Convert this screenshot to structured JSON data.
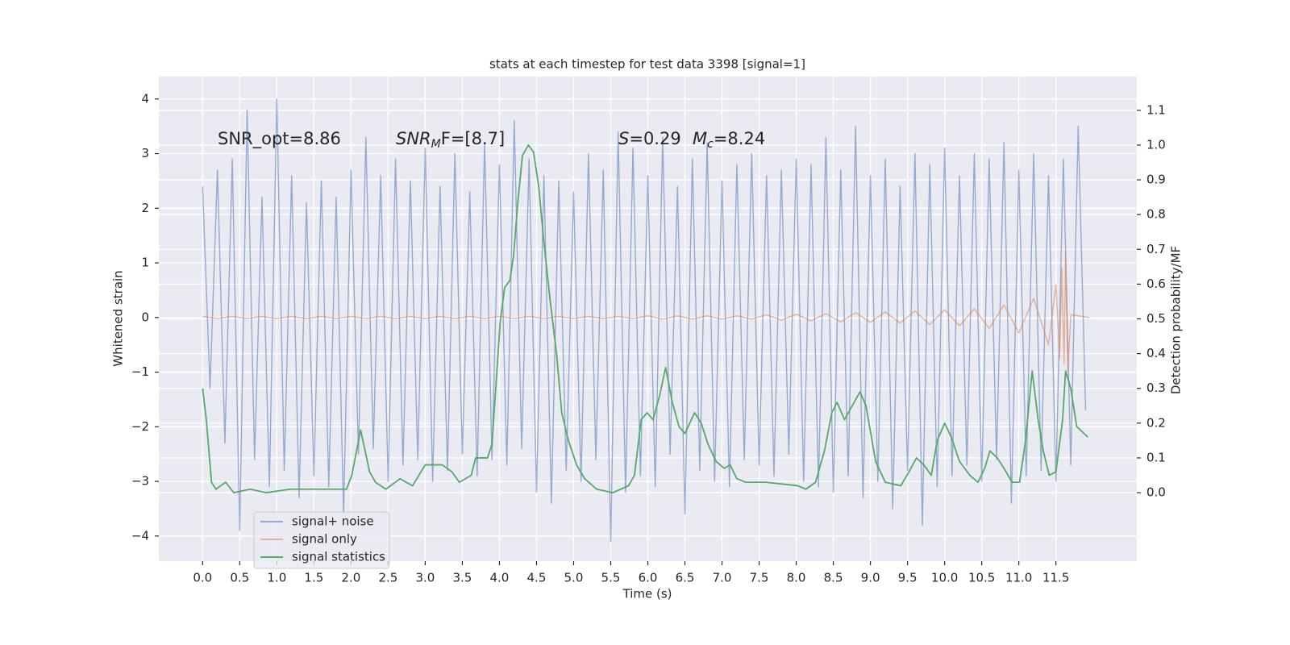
{
  "chart_data": {
    "type": "line",
    "title": "stats at each timestep for test data 3398 [signal=1]",
    "xlabel": "Time (s)",
    "ylabel": "Whitened strain",
    "y2label": "Detection probability/MF",
    "xlim": [
      -0.59,
      12.59
    ],
    "ylim": [
      -4.46,
      4.41
    ],
    "y2lim": [
      -0.197,
      1.197
    ],
    "xticks": [
      {
        "value": 0,
        "label": "0.0"
      },
      0.5,
      {
        "value": 1,
        "label": "1.0"
      },
      1.5,
      {
        "value": 2,
        "label": "2.0"
      },
      2.5,
      {
        "value": 3,
        "label": "3.0"
      },
      3.5,
      {
        "value": 4,
        "label": "4.0"
      },
      4.5,
      {
        "value": 5,
        "label": "5.0"
      },
      5.5,
      {
        "value": 6,
        "label": "6.0"
      },
      6.5,
      {
        "value": 7,
        "label": "7.0"
      },
      7.5,
      {
        "value": 8,
        "label": "8.0"
      },
      8.5,
      {
        "value": 9,
        "label": "9.0"
      },
      9.5,
      {
        "value": 10,
        "label": "10.0"
      },
      10.5,
      {
        "value": 11,
        "label": "11.0"
      },
      11.5
    ],
    "yticks": [
      {
        "value": -4,
        "label": "−4"
      },
      {
        "value": -3,
        "label": "−3"
      },
      {
        "value": -2,
        "label": "−2"
      },
      {
        "value": -1,
        "label": "−1"
      },
      0,
      1,
      2,
      3,
      4
    ],
    "y2ticks": [
      {
        "value": 0,
        "label": "0.0"
      },
      0.1,
      0.2,
      0.3,
      0.4,
      0.5,
      0.6,
      0.7,
      0.8,
      0.9,
      {
        "value": 1,
        "label": "1.0"
      },
      1.1
    ],
    "grid": true,
    "legend": "lower left",
    "annotations": [
      {
        "text": "SNR_opt=8.86"
      },
      {
        "base": "SNR",
        "sub": "M",
        "text": "F=[8.7]"
      },
      {
        "base": "S",
        "text": "=0.29"
      },
      {
        "base": "M",
        "sub": "c",
        "text": "=8.24"
      }
    ],
    "series": [
      {
        "name": "signal+ noise",
        "color": "#4c72b0",
        "x": [
          0.0,
          0.1,
          0.2,
          0.3,
          0.4,
          0.5,
          0.6,
          0.7,
          0.8,
          0.9,
          1.0,
          1.1,
          1.2,
          1.3,
          1.4,
          1.5,
          1.6,
          1.7,
          1.8,
          1.9,
          2.0,
          2.1,
          2.2,
          2.3,
          2.4,
          2.5,
          2.6,
          2.7,
          2.8,
          2.9,
          3.0,
          3.1,
          3.2,
          3.3,
          3.4,
          3.5,
          3.6,
          3.7,
          3.8,
          3.9,
          4.0,
          4.1,
          4.2,
          4.3,
          4.4,
          4.5,
          4.6,
          4.7,
          4.8,
          4.9,
          5.0,
          5.1,
          5.2,
          5.3,
          5.4,
          5.5,
          5.6,
          5.7,
          5.8,
          5.9,
          6.0,
          6.1,
          6.2,
          6.3,
          6.4,
          6.5,
          6.6,
          6.7,
          6.8,
          6.9,
          7.0,
          7.1,
          7.2,
          7.3,
          7.4,
          7.5,
          7.6,
          7.7,
          7.8,
          7.9,
          8.0,
          8.1,
          8.2,
          8.3,
          8.4,
          8.5,
          8.6,
          8.7,
          8.8,
          8.9,
          9.0,
          9.1,
          9.2,
          9.3,
          9.4,
          9.5,
          9.6,
          9.7,
          9.8,
          9.9,
          10.0,
          10.1,
          10.2,
          10.3,
          10.4,
          10.5,
          10.6,
          10.7,
          10.8,
          10.9,
          11.0,
          11.1,
          11.2,
          11.3,
          11.4,
          11.5,
          11.6,
          11.7,
          11.8,
          11.9
        ],
        "values": [
          2.4,
          -1.3,
          2.7,
          -2.3,
          2.9,
          -3.9,
          3.8,
          -2.6,
          2.2,
          -3.1,
          4.0,
          -2.8,
          2.6,
          -3.3,
          2.1,
          -2.9,
          2.5,
          -3.1,
          2.2,
          -3.6,
          2.7,
          -2.5,
          3.3,
          -2.4,
          2.6,
          -3.0,
          2.9,
          -2.7,
          2.5,
          -2.6,
          3.1,
          -3.0,
          2.4,
          -2.8,
          3.0,
          -2.5,
          2.3,
          -2.9,
          3.2,
          -2.6,
          2.8,
          -2.7,
          3.6,
          -2.4,
          2.9,
          -3.2,
          2.6,
          -3.4,
          2.5,
          -2.8,
          2.3,
          -3.0,
          3.0,
          -2.6,
          2.7,
          -4.1,
          3.4,
          -3.2,
          3.1,
          -2.9,
          2.6,
          -3.1,
          3.3,
          -2.5,
          2.4,
          -3.6,
          2.9,
          -2.8,
          3.2,
          -3.0,
          2.5,
          -3.1,
          2.8,
          -2.6,
          3.0,
          -2.7,
          2.6,
          -2.9,
          2.7,
          -2.5,
          2.9,
          -3.0,
          2.8,
          -3.1,
          3.3,
          -3.2,
          2.7,
          -2.9,
          3.5,
          -3.3,
          2.6,
          -3.0,
          2.9,
          -3.5,
          2.4,
          -2.8,
          3.0,
          -3.8,
          2.8,
          -3.1,
          3.1,
          -2.9,
          2.6,
          -2.7,
          3.0,
          -3.0,
          2.9,
          -2.6,
          3.2,
          -3.4,
          2.7,
          -2.9,
          3.0,
          -2.8,
          2.6,
          -3.0,
          2.9,
          -2.7,
          3.5,
          -1.7
        ]
      },
      {
        "name": "signal only",
        "color": "#dd8452",
        "x": [
          0.0,
          0.2,
          0.4,
          0.6,
          0.8,
          1.0,
          1.2,
          1.4,
          1.6,
          1.8,
          2.0,
          2.2,
          2.4,
          2.6,
          2.8,
          3.0,
          3.2,
          3.4,
          3.6,
          3.8,
          4.0,
          4.2,
          4.4,
          4.6,
          4.8,
          5.0,
          5.2,
          5.4,
          5.6,
          5.8,
          6.0,
          6.2,
          6.4,
          6.6,
          6.8,
          7.0,
          7.2,
          7.4,
          7.6,
          7.8,
          8.0,
          8.2,
          8.4,
          8.6,
          8.8,
          9.0,
          9.2,
          9.4,
          9.6,
          9.8,
          10.0,
          10.2,
          10.4,
          10.6,
          10.8,
          11.0,
          11.2,
          11.4,
          11.5,
          11.55,
          11.58,
          11.61,
          11.63,
          11.66,
          11.7,
          11.95
        ],
        "values": [
          0.02,
          -0.02,
          0.02,
          -0.02,
          0.02,
          -0.02,
          0.02,
          -0.02,
          0.02,
          -0.02,
          0.02,
          -0.02,
          0.02,
          -0.02,
          0.02,
          -0.02,
          0.02,
          -0.02,
          0.02,
          -0.02,
          0.02,
          -0.02,
          0.02,
          -0.02,
          0.02,
          -0.02,
          0.02,
          -0.02,
          0.02,
          -0.02,
          0.03,
          -0.03,
          0.03,
          -0.03,
          0.03,
          -0.03,
          0.03,
          -0.03,
          0.05,
          -0.05,
          0.06,
          -0.06,
          0.07,
          -0.08,
          0.09,
          -0.09,
          0.1,
          -0.1,
          0.12,
          -0.13,
          0.14,
          -0.15,
          0.16,
          -0.2,
          0.23,
          -0.28,
          0.35,
          -0.5,
          0.6,
          -0.75,
          0.9,
          -0.85,
          1.2,
          -1.0,
          0.05,
          0.0
        ]
      },
      {
        "name": "signal statistics",
        "color": "#55a868",
        "axis": "y2",
        "x": [
          0.0,
          0.05,
          0.12,
          0.18,
          0.31,
          0.42,
          0.64,
          0.86,
          1.18,
          1.62,
          1.94,
          2.01,
          2.13,
          2.25,
          2.33,
          2.47,
          2.66,
          2.83,
          3.0,
          3.23,
          3.36,
          3.46,
          3.62,
          3.68,
          3.84,
          3.9,
          3.95,
          4.01,
          4.07,
          4.14,
          4.19,
          4.25,
          4.31,
          4.39,
          4.46,
          4.53,
          4.6,
          4.68,
          4.77,
          4.84,
          4.93,
          5.04,
          5.15,
          5.31,
          5.53,
          5.74,
          5.82,
          5.91,
          5.99,
          6.07,
          6.16,
          6.24,
          6.33,
          6.42,
          6.5,
          6.63,
          6.72,
          6.81,
          6.92,
          7.03,
          7.11,
          7.2,
          7.32,
          7.59,
          8.02,
          8.13,
          8.26,
          8.38,
          8.48,
          8.55,
          8.65,
          8.78,
          8.86,
          8.94,
          9.07,
          9.2,
          9.41,
          9.52,
          9.62,
          9.72,
          9.82,
          9.9,
          10.0,
          10.09,
          10.2,
          10.34,
          10.45,
          10.54,
          10.61,
          10.71,
          10.8,
          10.91,
          11.01,
          11.09,
          11.18,
          11.26,
          11.33,
          11.41,
          11.5,
          11.59,
          11.63,
          11.7,
          11.78,
          11.93
        ],
        "values": [
          0.3,
          0.21,
          0.03,
          0.01,
          0.03,
          0.0,
          0.01,
          0.0,
          0.01,
          0.01,
          0.01,
          0.05,
          0.18,
          0.06,
          0.03,
          0.01,
          0.04,
          0.02,
          0.08,
          0.08,
          0.06,
          0.03,
          0.05,
          0.1,
          0.1,
          0.14,
          0.3,
          0.49,
          0.59,
          0.61,
          0.68,
          0.84,
          0.97,
          1.0,
          0.98,
          0.88,
          0.72,
          0.56,
          0.4,
          0.23,
          0.15,
          0.08,
          0.04,
          0.01,
          0.0,
          0.02,
          0.05,
          0.21,
          0.23,
          0.21,
          0.28,
          0.36,
          0.26,
          0.19,
          0.17,
          0.23,
          0.2,
          0.14,
          0.09,
          0.07,
          0.08,
          0.04,
          0.03,
          0.03,
          0.02,
          0.01,
          0.03,
          0.12,
          0.23,
          0.26,
          0.21,
          0.26,
          0.29,
          0.25,
          0.09,
          0.03,
          0.02,
          0.06,
          0.1,
          0.08,
          0.05,
          0.15,
          0.2,
          0.16,
          0.09,
          0.05,
          0.03,
          0.07,
          0.12,
          0.1,
          0.07,
          0.03,
          0.03,
          0.15,
          0.35,
          0.21,
          0.12,
          0.05,
          0.06,
          0.21,
          0.35,
          0.3,
          0.19,
          0.16
        ]
      }
    ]
  }
}
